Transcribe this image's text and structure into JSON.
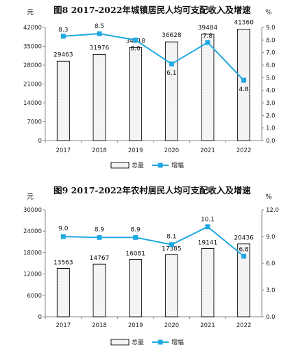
{
  "chart_data": [
    {
      "type": "bar",
      "title": "图8  2017-2022年城镇居民人均可支配收入及增速",
      "left_unit": "元",
      "right_unit": "%",
      "categories": [
        "2017",
        "2018",
        "2019",
        "2020",
        "2021",
        "2022"
      ],
      "series": [
        {
          "name": "总量",
          "type": "bar",
          "axis": "left",
          "values": [
            29463,
            31976,
            34518,
            36628,
            39484,
            41360
          ]
        },
        {
          "name": "增幅",
          "type": "line",
          "axis": "right",
          "values": [
            8.3,
            8.5,
            8.0,
            6.1,
            7.8,
            4.8
          ]
        }
      ],
      "ylim": [
        0,
        42000
      ],
      "yticks": [
        "0",
        "7000",
        "14000",
        "21000",
        "28000",
        "35000",
        "42000"
      ],
      "y2lim": [
        0,
        9
      ],
      "y2ticks": [
        "0.0",
        "1.0",
        "2.0",
        "3.0",
        "4.0",
        "5.0",
        "6.0",
        "7.0",
        "8.0",
        "9.0"
      ],
      "bar_labels": [
        "29463",
        "31976",
        "34518",
        "36628",
        "39484",
        "41360"
      ],
      "rate_labels": [
        "8.3",
        "8.5",
        "8.0",
        "6.1",
        "7.8",
        "4.8"
      ],
      "legend": [
        "总量",
        "增幅"
      ],
      "legend_position": "bottom"
    },
    {
      "type": "bar",
      "title": "图9  2017-2022年农村居民人均可支配收入及增速",
      "left_unit": "元",
      "right_unit": "%",
      "categories": [
        "2017",
        "2018",
        "2019",
        "2020",
        "2021",
        "2022"
      ],
      "series": [
        {
          "name": "总量",
          "type": "bar",
          "axis": "left",
          "values": [
            13563,
            14767,
            16081,
            17385,
            19141,
            20436
          ]
        },
        {
          "name": "增幅",
          "type": "line",
          "axis": "right",
          "values": [
            9.0,
            8.9,
            8.9,
            8.1,
            10.1,
            6.8
          ]
        }
      ],
      "ylim": [
        0,
        30000
      ],
      "yticks": [
        "0",
        "6000",
        "12000",
        "18000",
        "24000",
        "30000"
      ],
      "y2lim": [
        0,
        12
      ],
      "y2ticks": [
        "0.0",
        "3.0",
        "6.0",
        "9.0",
        "12.0"
      ],
      "bar_labels": [
        "13563",
        "14767",
        "16081",
        "17385",
        "19141",
        "20436"
      ],
      "rate_labels": [
        "9.0",
        "8.9",
        "8.9",
        "8.1",
        "10.1",
        "6.8"
      ],
      "legend": [
        "总量",
        "增幅"
      ],
      "legend_position": "bottom"
    }
  ],
  "colors": {
    "line": "#1fa7e0",
    "bar_edge": "#000000",
    "bar_dots": "#9a9a9a"
  }
}
